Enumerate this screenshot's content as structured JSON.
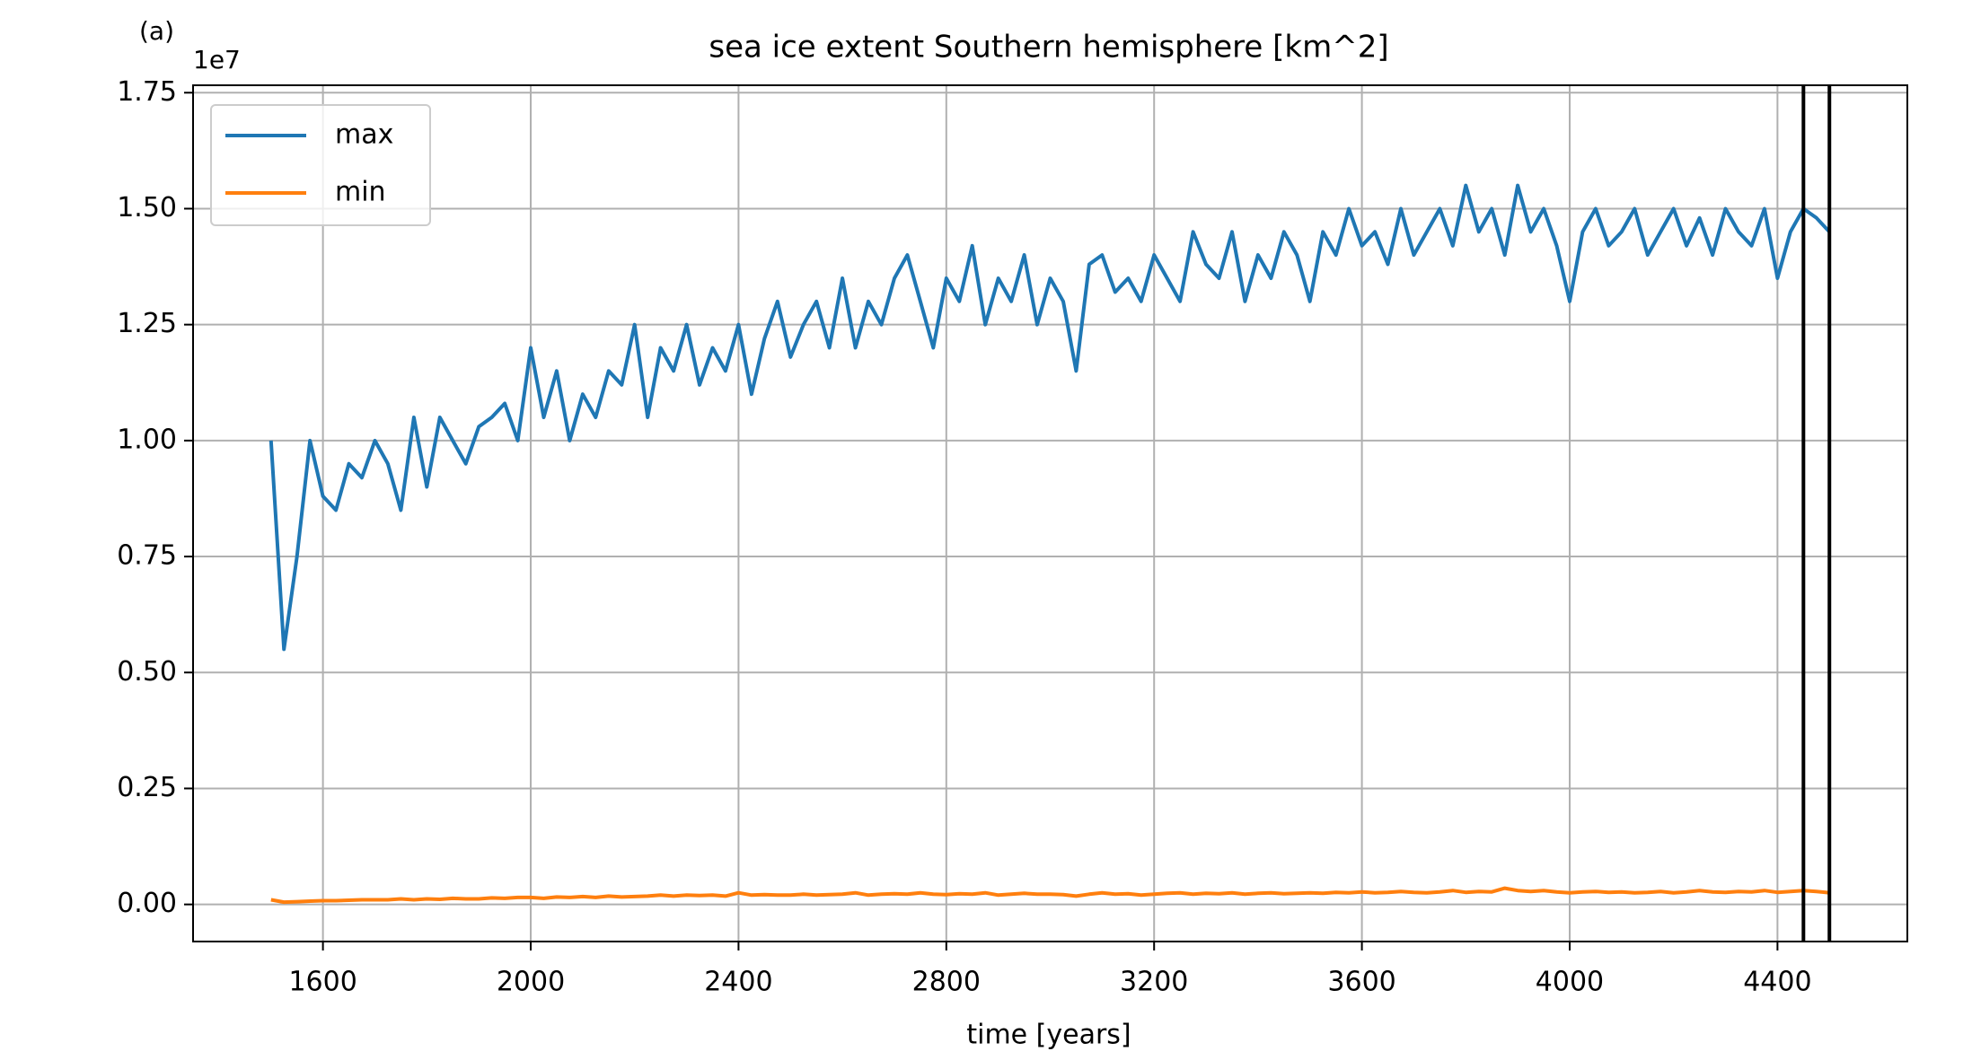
{
  "chart_data": {
    "type": "line",
    "title": "sea ice extent Southern hemisphere [km^2]",
    "panel_label": "(a)",
    "offset_label": "1e7",
    "xlabel": "time [years]",
    "xlim": [
      1350,
      4650
    ],
    "ylim": [
      -0.08,
      1.766
    ],
    "xticks": [
      1600,
      2000,
      2400,
      2800,
      3200,
      3600,
      4000,
      4400
    ],
    "yticks": [
      {
        "value": 0,
        "label": "0.00"
      },
      0.25,
      {
        "value": 0.5,
        "label": "0.50"
      },
      0.75,
      {
        "value": 1,
        "label": "1.00"
      },
      1.25,
      {
        "value": 1.5,
        "label": "1.50"
      },
      1.75
    ],
    "grid": true,
    "legend": "upper left",
    "vlines": [
      4450,
      4500
    ],
    "vline_color": "#000000",
    "x": [
      1500,
      1525,
      1550,
      1575,
      1600,
      1625,
      1650,
      1675,
      1700,
      1725,
      1750,
      1775,
      1800,
      1825,
      1850,
      1875,
      1900,
      1925,
      1950,
      1975,
      2000,
      2025,
      2050,
      2075,
      2100,
      2125,
      2150,
      2175,
      2200,
      2225,
      2250,
      2275,
      2300,
      2325,
      2350,
      2375,
      2400,
      2425,
      2450,
      2475,
      2500,
      2525,
      2550,
      2575,
      2600,
      2625,
      2650,
      2675,
      2700,
      2725,
      2750,
      2775,
      2800,
      2825,
      2850,
      2875,
      2900,
      2925,
      2950,
      2975,
      3000,
      3025,
      3050,
      3075,
      3100,
      3125,
      3150,
      3175,
      3200,
      3225,
      3250,
      3275,
      3300,
      3325,
      3350,
      3375,
      3400,
      3425,
      3450,
      3475,
      3500,
      3525,
      3550,
      3575,
      3600,
      3625,
      3650,
      3675,
      3700,
      3725,
      3750,
      3775,
      3800,
      3825,
      3850,
      3875,
      3900,
      3925,
      3950,
      3975,
      4000,
      4025,
      4050,
      4075,
      4100,
      4125,
      4150,
      4175,
      4200,
      4225,
      4250,
      4275,
      4300,
      4325,
      4350,
      4375,
      4400,
      4425,
      4450,
      4475,
      4500
    ],
    "series": [
      {
        "name": "max",
        "color": "#1f77b4",
        "values": [
          1.0,
          0.55,
          0.75,
          1.0,
          0.88,
          0.85,
          0.95,
          0.92,
          1.0,
          0.95,
          0.85,
          1.05,
          0.9,
          1.05,
          1.0,
          0.95,
          1.03,
          1.05,
          1.08,
          1.0,
          1.2,
          1.05,
          1.15,
          1.0,
          1.1,
          1.05,
          1.15,
          1.12,
          1.25,
          1.05,
          1.2,
          1.15,
          1.25,
          1.12,
          1.2,
          1.15,
          1.25,
          1.1,
          1.22,
          1.3,
          1.18,
          1.25,
          1.3,
          1.2,
          1.35,
          1.2,
          1.3,
          1.25,
          1.35,
          1.4,
          1.3,
          1.2,
          1.35,
          1.3,
          1.42,
          1.25,
          1.35,
          1.3,
          1.4,
          1.25,
          1.35,
          1.3,
          1.15,
          1.38,
          1.4,
          1.32,
          1.35,
          1.3,
          1.4,
          1.35,
          1.3,
          1.45,
          1.38,
          1.35,
          1.45,
          1.3,
          1.4,
          1.35,
          1.45,
          1.4,
          1.3,
          1.45,
          1.4,
          1.5,
          1.42,
          1.45,
          1.38,
          1.5,
          1.4,
          1.45,
          1.5,
          1.42,
          1.55,
          1.45,
          1.5,
          1.4,
          1.55,
          1.45,
          1.5,
          1.42,
          1.3,
          1.45,
          1.5,
          1.42,
          1.45,
          1.5,
          1.4,
          1.45,
          1.5,
          1.42,
          1.48,
          1.4,
          1.5,
          1.45,
          1.42,
          1.5,
          1.35,
          1.45,
          1.5,
          1.48,
          1.45
        ]
      },
      {
        "name": "min",
        "color": "#ff7f0e",
        "values": [
          0.01,
          0.005,
          0.006,
          0.007,
          0.008,
          0.008,
          0.009,
          0.01,
          0.01,
          0.01,
          0.012,
          0.01,
          0.012,
          0.011,
          0.013,
          0.012,
          0.012,
          0.014,
          0.013,
          0.015,
          0.015,
          0.013,
          0.016,
          0.015,
          0.017,
          0.015,
          0.018,
          0.016,
          0.017,
          0.018,
          0.02,
          0.018,
          0.02,
          0.019,
          0.02,
          0.018,
          0.025,
          0.02,
          0.021,
          0.02,
          0.02,
          0.022,
          0.02,
          0.021,
          0.022,
          0.025,
          0.02,
          0.022,
          0.023,
          0.022,
          0.025,
          0.022,
          0.021,
          0.023,
          0.022,
          0.025,
          0.02,
          0.022,
          0.024,
          0.022,
          0.022,
          0.021,
          0.018,
          0.022,
          0.025,
          0.022,
          0.023,
          0.02,
          0.022,
          0.024,
          0.025,
          0.022,
          0.024,
          0.023,
          0.025,
          0.022,
          0.024,
          0.025,
          0.023,
          0.024,
          0.025,
          0.024,
          0.026,
          0.025,
          0.027,
          0.025,
          0.026,
          0.028,
          0.026,
          0.025,
          0.027,
          0.03,
          0.026,
          0.028,
          0.027,
          0.035,
          0.03,
          0.028,
          0.03,
          0.027,
          0.025,
          0.027,
          0.028,
          0.026,
          0.027,
          0.025,
          0.026,
          0.028,
          0.025,
          0.027,
          0.03,
          0.027,
          0.026,
          0.028,
          0.027,
          0.03,
          0.026,
          0.028,
          0.03,
          0.028,
          0.025
        ]
      }
    ]
  }
}
